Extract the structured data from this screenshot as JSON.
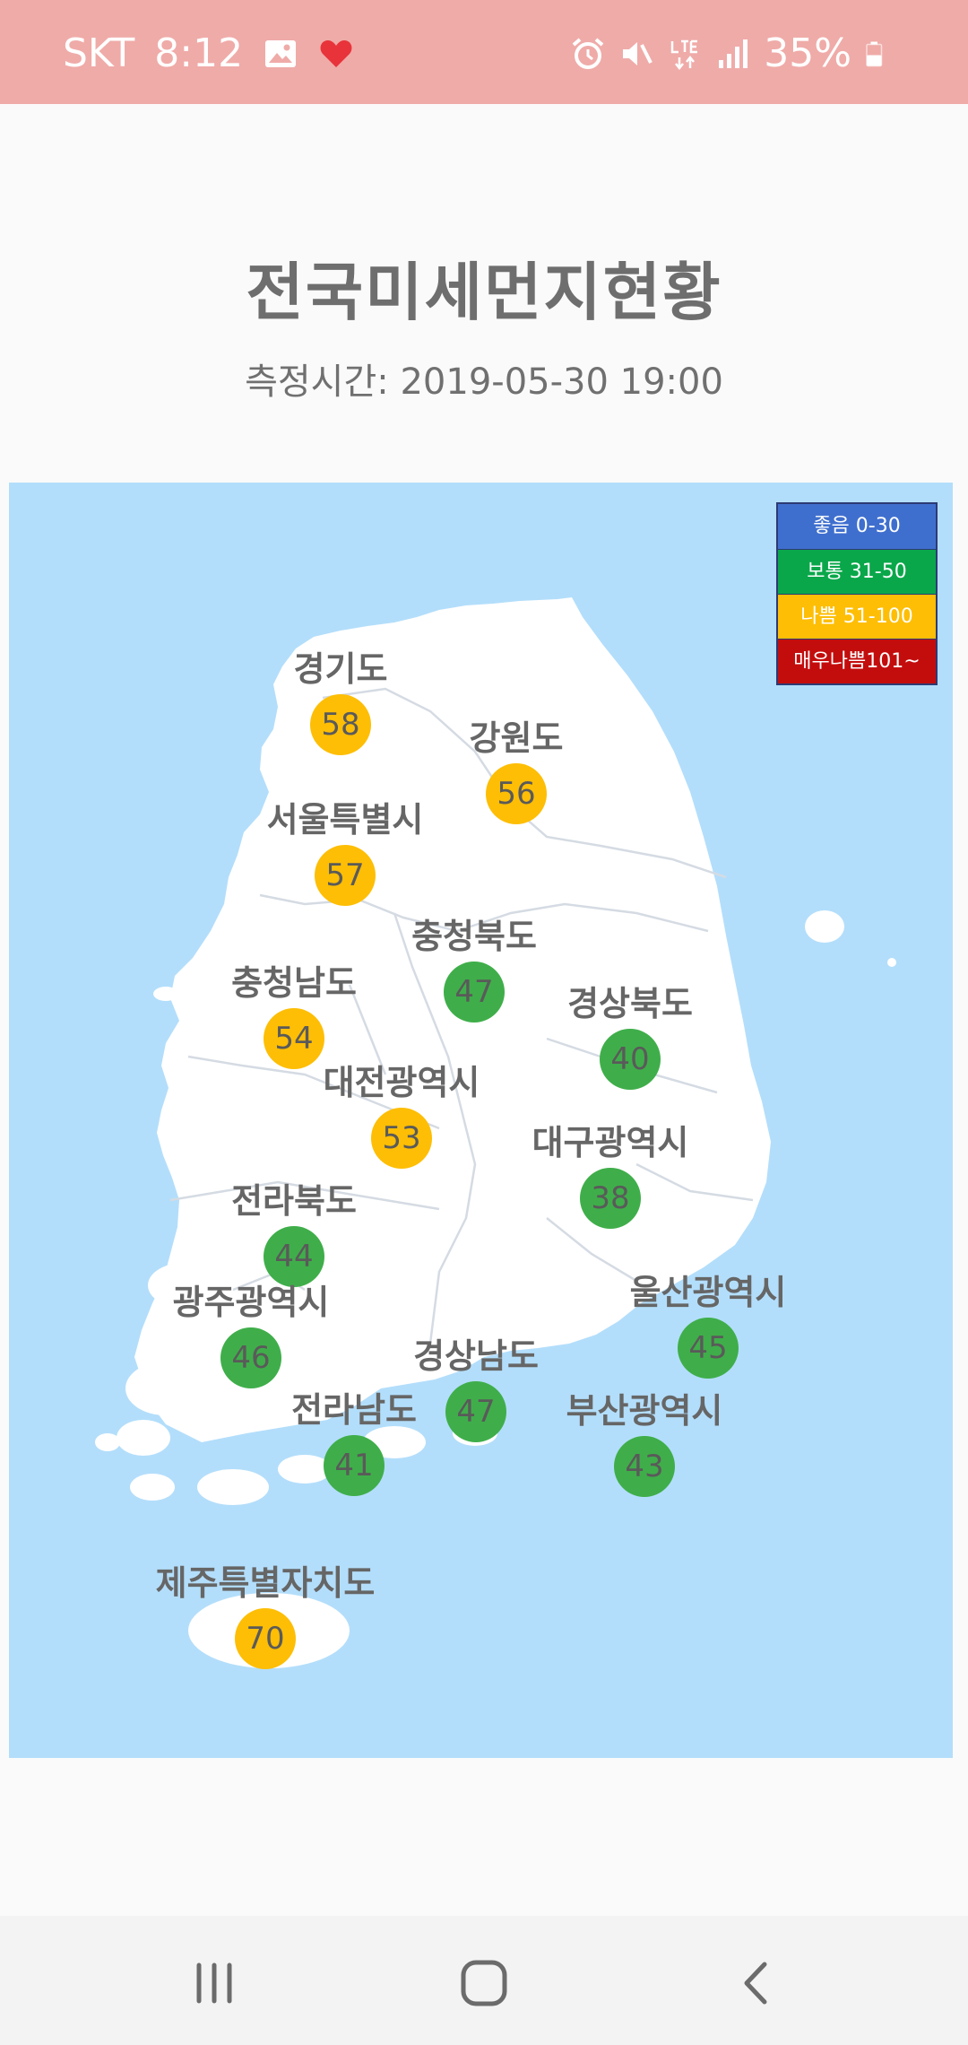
{
  "status_bar": {
    "carrier": "SKT",
    "time": "8:12",
    "battery": "35%",
    "icons_left": [
      "image-icon",
      "heart-icon"
    ],
    "icons_right": [
      "alarm-icon",
      "mute-icon",
      "lte-icon",
      "signal-icon",
      "battery-icon"
    ]
  },
  "header": {
    "title": "전국미세먼지현황",
    "measured_time": "측정시간: 2019-05-30 19:00"
  },
  "legend": [
    {
      "label": "좋음   0-30",
      "color": "#3f6fce"
    },
    {
      "label": "보통  31-50",
      "color": "#0aa74a"
    },
    {
      "label": "나쁨  51-100",
      "color": "#fdbe05"
    },
    {
      "label": "매우나쁨101~",
      "color": "#c30d0d"
    }
  ],
  "regions": [
    {
      "name": "경기도",
      "value": "58",
      "level": "yellow"
    },
    {
      "name": "강원도",
      "value": "56",
      "level": "yellow"
    },
    {
      "name": "서울특별시",
      "value": "57",
      "level": "yellow"
    },
    {
      "name": "충청북도",
      "value": "47",
      "level": "green"
    },
    {
      "name": "충청남도",
      "value": "54",
      "level": "yellow"
    },
    {
      "name": "경상북도",
      "value": "40",
      "level": "green"
    },
    {
      "name": "대전광역시",
      "value": "53",
      "level": "yellow"
    },
    {
      "name": "대구광역시",
      "value": "38",
      "level": "green"
    },
    {
      "name": "전라북도",
      "value": "44",
      "level": "green"
    },
    {
      "name": "울산광역시",
      "value": "45",
      "level": "green"
    },
    {
      "name": "광주광역시",
      "value": "46",
      "level": "green"
    },
    {
      "name": "경상남도",
      "value": "47",
      "level": "green"
    },
    {
      "name": "전라남도",
      "value": "41",
      "level": "green"
    },
    {
      "name": "부산광역시",
      "value": "43",
      "level": "green"
    },
    {
      "name": "제주특별자치도",
      "value": "70",
      "level": "yellow"
    }
  ],
  "nav_bar": {
    "icons": [
      "recent-apps-icon",
      "home-icon",
      "back-icon"
    ]
  }
}
